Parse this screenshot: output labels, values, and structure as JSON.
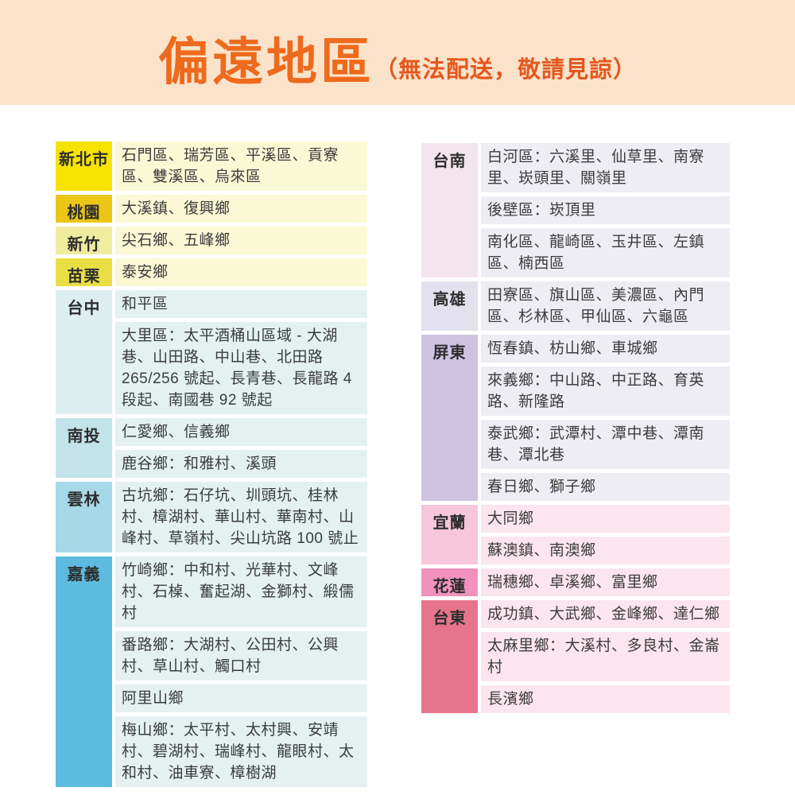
{
  "banner": {
    "title": "偏遠地區",
    "subtitle": "（無法配送，敬請見諒）",
    "bg_color": "#FBE3CB",
    "title_color": "#EE6A1C",
    "subtitle_color": "#E4581E"
  },
  "left_table": {
    "groups": [
      {
        "label": "新北市",
        "label_color": "#F6E300",
        "row_color": "#FBF8D6",
        "rows": [
          "石門區、瑞芳區、平溪區、貢寮區、雙溪區、烏來區"
        ]
      },
      {
        "label": "桃園",
        "label_color": "#EBC616",
        "row_color": "#FBF8D6",
        "rows": [
          "大溪鎮、復興鄉"
        ]
      },
      {
        "label": "新竹",
        "label_color": "#EFEB9F",
        "row_color": "#FBF8D6",
        "rows": [
          "尖石鄉、五峰鄉"
        ]
      },
      {
        "label": "苗栗",
        "label_color": "#E9DF45",
        "row_color": "#FBF8D6",
        "rows": [
          "泰安鄉"
        ]
      },
      {
        "label": "台中",
        "label_color": "#DDEEF0",
        "row_color": "#E4F1F0",
        "rows": [
          "和平區",
          "大里區：太平酒桶山區域 - 大湖巷、山田路、中山巷、北田路 265/256 號起、長青巷、長龍路 4 段起、南國巷 92 號起"
        ]
      },
      {
        "label": "南投",
        "label_color": "#C3E3EB",
        "row_color": "#E4F1F0",
        "rows": [
          "仁愛鄉、信義鄉",
          "鹿谷鄉：和雅村、溪頭"
        ]
      },
      {
        "label": "雲林",
        "label_color": "#A7D8E7",
        "row_color": "#E4F1F0",
        "rows": [
          "古坑鄉：石仔坑、圳頭坑、桂林村、樟湖村、華山村、華南村、山峰村、草嶺村、尖山坑路 100 號止"
        ]
      },
      {
        "label": "嘉義",
        "label_color": "#5CBBDE",
        "row_color": "#E4F1F0",
        "rows": [
          "竹崎鄉：中和村、光華村、文峰村、石槕、奮起湖、金獅村、緞儒村",
          "番路鄉：大湖村、公田村、公興村、草山村、觸口村",
          "阿里山鄉",
          "梅山鄉：太平村、太村興、安靖村、碧湖村、瑞峰村、龍眼村、太和村、油車寮、樟樹湖"
        ]
      }
    ]
  },
  "right_table": {
    "groups": [
      {
        "label": "台南",
        "label_color": "#F3E5ED",
        "row_color": "#EFEDF4",
        "rows": [
          "白河區：六溪里、仙草里、南寮里、崁頭里、關嶺里",
          "後壁區：崁頂里",
          "南化區、龍崎區、玉井區、左鎮區、楠西區"
        ]
      },
      {
        "label": "高雄",
        "label_color": "#E3E1EE",
        "row_color": "#EFEDF4",
        "rows": [
          "田寮區、旗山區、美濃區、內門區、杉林區、甲仙區、六龜區"
        ]
      },
      {
        "label": "屏東",
        "label_color": "#CFC3E2",
        "row_color": "#EFEDF4",
        "rows": [
          "恆春鎮、枋山鄉、車城鄉",
          "來義鄉：中山路、中正路、育英路、新隆路",
          "泰武鄉：武潭村、潭中巷、潭南巷、潭北巷",
          "春日鄉、獅子鄉"
        ]
      },
      {
        "label": "宜蘭",
        "label_color": "#F7C6DB",
        "row_color": "#FCE5EF",
        "rows": [
          "大同鄉",
          "蘇澳鎮、南澳鄉"
        ]
      },
      {
        "label": "花蓮",
        "label_color": "#F192BD",
        "row_color": "#FCE5EF",
        "rows": [
          "瑞穗鄉、卓溪鄉、富里鄉"
        ]
      },
      {
        "label": "台東",
        "label_color": "#E6758C",
        "row_color": "#FCE5EF",
        "rows": [
          "成功鎮、大武鄉、金峰鄉、達仁鄉",
          "太麻里鄉：大溪村、多良村、金崙村",
          "長濱鄉"
        ]
      }
    ]
  }
}
